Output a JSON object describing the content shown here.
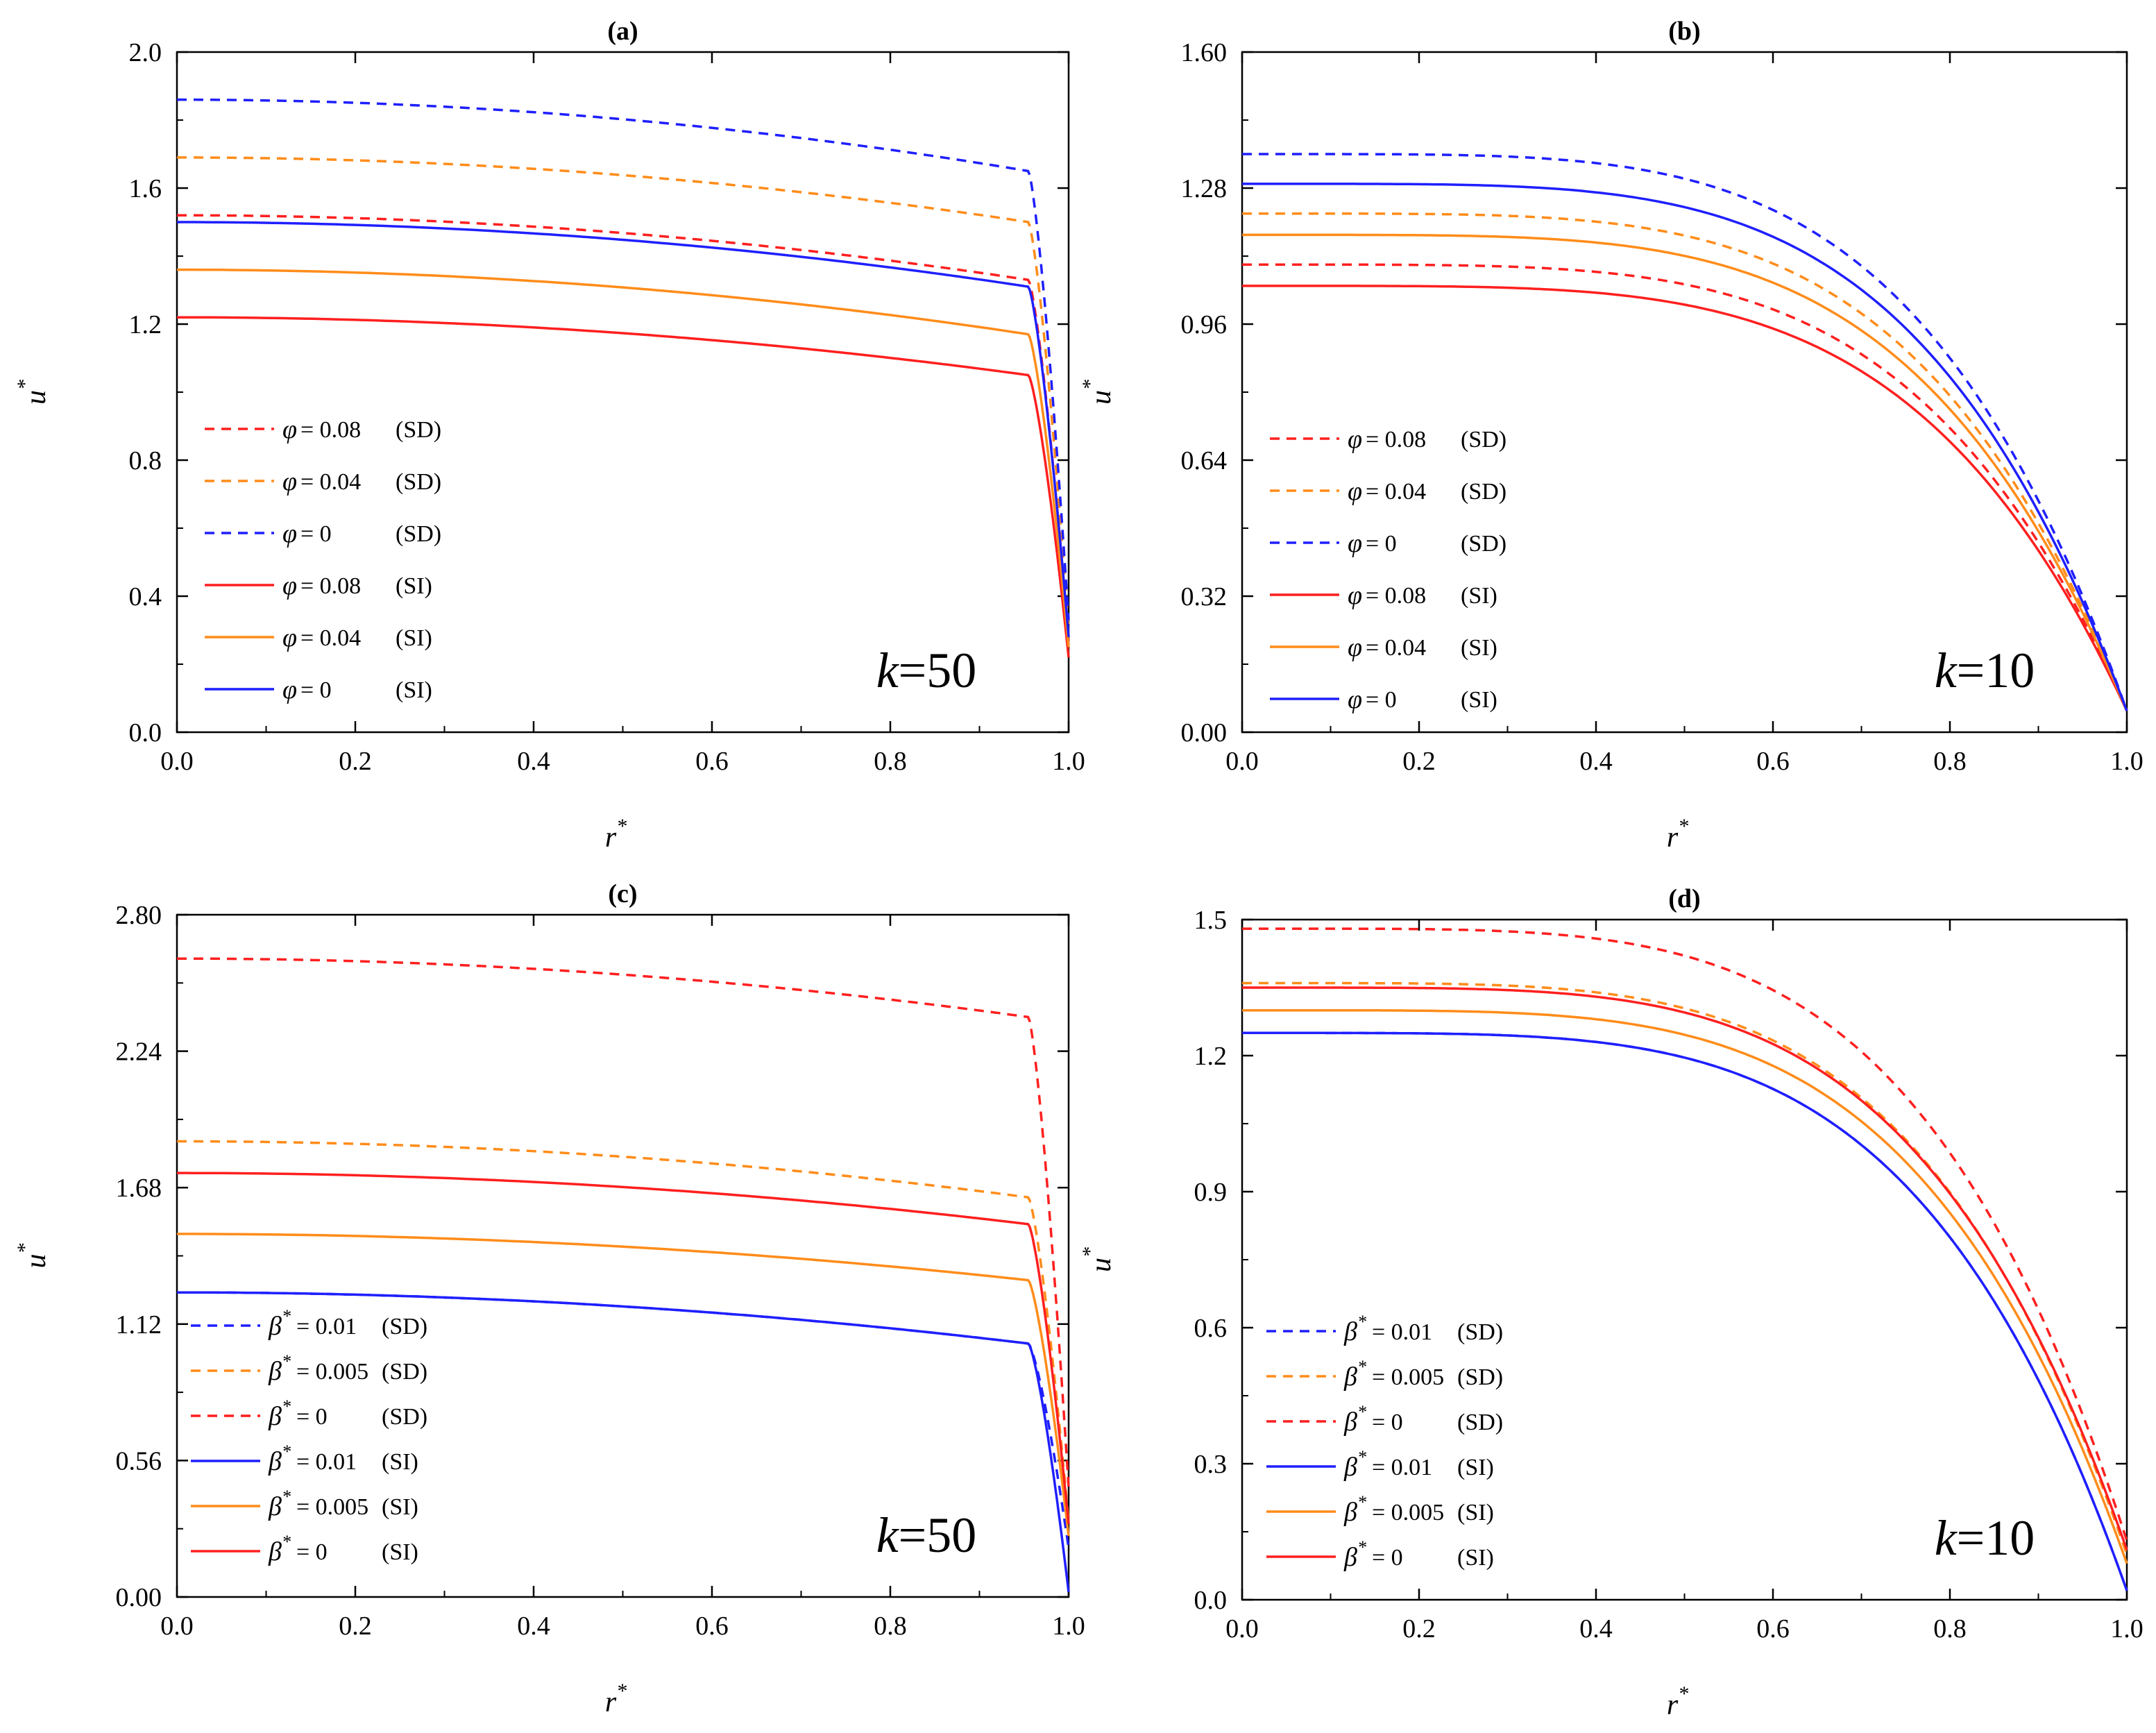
{
  "colors": {
    "red": "#ff1f1f",
    "orange": "#ff8c1a",
    "blue": "#1f1fff",
    "axis": "#000000"
  },
  "chart_data": [
    {
      "type": "line",
      "panel": "(a)",
      "xlabel": "r",
      "ylabel": "u",
      "label_superscript": "*",
      "xlim": [
        0,
        1
      ],
      "ylim": [
        0,
        2
      ],
      "xticks": [
        "0.0",
        "0.2",
        "0.4",
        "0.6",
        "0.8",
        "1.0"
      ],
      "yticks": [
        "0.0",
        "0.4",
        "0.8",
        "1.2",
        "1.6",
        "2.0"
      ],
      "k_label": {
        "k": "k",
        "value": "=50"
      },
      "legend_symbol": "φ",
      "legend_superscript": "",
      "decay": "sharp",
      "series": [
        {
          "name": "φ = 0.08 (SD)",
          "param": "= 0.08",
          "model": "(SD)",
          "color": "red",
          "dash": true,
          "u0": 1.52,
          "ue": 1.33,
          "uw": 0.27
        },
        {
          "name": "φ = 0.04 (SD)",
          "param": "= 0.04",
          "model": "(SD)",
          "color": "orange",
          "dash": true,
          "u0": 1.69,
          "ue": 1.5,
          "uw": 0.3
        },
        {
          "name": "φ = 0 (SD)",
          "param": "= 0",
          "model": "(SD)",
          "color": "blue",
          "dash": true,
          "u0": 1.86,
          "ue": 1.65,
          "uw": 0.33
        },
        {
          "name": "φ = 0.08 (SI)",
          "param": "= 0.08",
          "model": "(SI)",
          "color": "red",
          "dash": false,
          "u0": 1.22,
          "ue": 1.05,
          "uw": 0.22
        },
        {
          "name": "φ = 0.04 (SI)",
          "param": "= 0.04",
          "model": "(SI)",
          "color": "orange",
          "dash": false,
          "u0": 1.36,
          "ue": 1.17,
          "uw": 0.25
        },
        {
          "name": "φ = 0 (SI)",
          "param": "= 0",
          "model": "(SI)",
          "color": "blue",
          "dash": false,
          "u0": 1.5,
          "ue": 1.31,
          "uw": 0.28
        }
      ]
    },
    {
      "type": "line",
      "panel": "(b)",
      "xlabel": "r",
      "ylabel": "u",
      "label_superscript": "*",
      "xlim": [
        0,
        1
      ],
      "ylim": [
        0,
        1.6
      ],
      "xticks": [
        "0.0",
        "0.2",
        "0.4",
        "0.6",
        "0.8",
        "1.0"
      ],
      "yticks": [
        "0.00",
        "0.32",
        "0.64",
        "0.96",
        "1.28",
        "1.60"
      ],
      "k_label": {
        "k": "k",
        "value": "=10"
      },
      "legend_symbol": "φ",
      "legend_superscript": "",
      "decay": "smooth",
      "series": [
        {
          "name": "φ = 0.08 (SD)",
          "param": "= 0.08",
          "model": "(SD)",
          "color": "red",
          "dash": true,
          "u0": 1.1,
          "uw": 0.05
        },
        {
          "name": "φ = 0.04 (SD)",
          "param": "= 0.04",
          "model": "(SD)",
          "color": "orange",
          "dash": true,
          "u0": 1.22,
          "uw": 0.05
        },
        {
          "name": "φ = 0 (SD)",
          "param": "= 0",
          "model": "(SD)",
          "color": "blue",
          "dash": true,
          "u0": 1.36,
          "uw": 0.05
        },
        {
          "name": "φ = 0.08 (SI)",
          "param": "= 0.08",
          "model": "(SI)",
          "color": "red",
          "dash": false,
          "u0": 1.05,
          "uw": 0.05
        },
        {
          "name": "φ = 0.04 (SI)",
          "param": "= 0.04",
          "model": "(SI)",
          "color": "orange",
          "dash": false,
          "u0": 1.17,
          "uw": 0.05
        },
        {
          "name": "φ = 0 (SI)",
          "param": "= 0",
          "model": "(SI)",
          "color": "blue",
          "dash": false,
          "u0": 1.29,
          "uw": 0.05
        }
      ]
    },
    {
      "type": "line",
      "panel": "(c)",
      "xlabel": "r",
      "ylabel": "u",
      "label_superscript": "*",
      "xlim": [
        0,
        1
      ],
      "ylim": [
        0,
        2.8
      ],
      "xticks": [
        "0.0",
        "0.2",
        "0.4",
        "0.6",
        "0.8",
        "1.0"
      ],
      "yticks": [
        "0.00",
        "0.56",
        "1.12",
        "1.68",
        "2.24",
        "2.80"
      ],
      "k_label": {
        "k": "k",
        "value": "=50"
      },
      "legend_symbol": "β",
      "legend_superscript": "*",
      "decay": "sharp",
      "series": [
        {
          "name": "β* = 0.01 (SD)",
          "param": "= 0.01",
          "model": "(SD)",
          "color": "blue",
          "dash": true,
          "u0": 1.25,
          "ue": 1.04,
          "uw": 0.2
        },
        {
          "name": "β* = 0.005 (SD)",
          "param": "= 0.005",
          "model": "(SD)",
          "color": "orange",
          "dash": true,
          "u0": 1.87,
          "ue": 1.64,
          "uw": 0.31
        },
        {
          "name": "β* = 0 (SD)",
          "param": "= 0",
          "model": "(SD)",
          "color": "red",
          "dash": true,
          "u0": 2.62,
          "ue": 2.38,
          "uw": 0.45
        },
        {
          "name": "β* = 0.01 (SI)",
          "param": "= 0.01",
          "model": "(SI)",
          "color": "blue",
          "dash": false,
          "u0": 1.25,
          "ue": 1.04,
          "uw": 0.02
        },
        {
          "name": "β* = 0.005 (SI)",
          "param": "= 0.005",
          "model": "(SI)",
          "color": "orange",
          "dash": false,
          "u0": 1.49,
          "ue": 1.3,
          "uw": 0.25
        },
        {
          "name": "β* = 0 (SI)",
          "param": "= 0",
          "model": "(SI)",
          "color": "red",
          "dash": false,
          "u0": 1.74,
          "ue": 1.53,
          "uw": 0.3
        }
      ]
    },
    {
      "type": "line",
      "panel": "(d)",
      "xlabel": "r",
      "ylabel": "u",
      "label_superscript": "*",
      "xlim": [
        0,
        1
      ],
      "ylim": [
        0,
        1.5
      ],
      "xticks": [
        "0.0",
        "0.2",
        "0.4",
        "0.6",
        "0.8",
        "1.0"
      ],
      "yticks": [
        "0.0",
        "0.3",
        "0.6",
        "0.9",
        "1.2",
        "1.5"
      ],
      "k_label": {
        "k": "k",
        "value": "=10"
      },
      "legend_symbol": "β",
      "legend_superscript": "*",
      "decay": "smooth",
      "series": [
        {
          "name": "β* = 0.01 (SD)",
          "param": "= 0.01",
          "model": "(SD)",
          "color": "blue",
          "dash": true,
          "u0": 1.25,
          "uw": 0.02
        },
        {
          "name": "β* = 0.005 (SD)",
          "param": "= 0.005",
          "model": "(SD)",
          "color": "orange",
          "dash": true,
          "u0": 1.36,
          "uw": 0.1
        },
        {
          "name": "β* = 0 (SD)",
          "param": "= 0",
          "model": "(SD)",
          "color": "red",
          "dash": true,
          "u0": 1.48,
          "uw": 0.13
        },
        {
          "name": "β* = 0.01 (SI)",
          "param": "= 0.01",
          "model": "(SI)",
          "color": "blue",
          "dash": false,
          "u0": 1.25,
          "uw": 0.02
        },
        {
          "name": "β* = 0.005 (SI)",
          "param": "= 0.005",
          "model": "(SI)",
          "color": "orange",
          "dash": false,
          "u0": 1.3,
          "uw": 0.08
        },
        {
          "name": "β* = 0 (SI)",
          "param": "= 0",
          "model": "(SI)",
          "color": "red",
          "dash": false,
          "u0": 1.35,
          "uw": 0.11
        }
      ]
    }
  ]
}
